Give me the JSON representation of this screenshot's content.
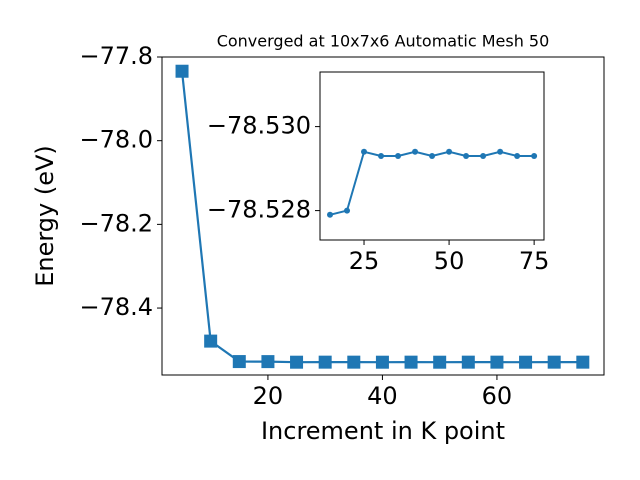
{
  "chart_data": [
    {
      "type": "line",
      "title": "Converged at 10x7x6 Automatic Mesh 50",
      "x_label": "Increment in K point",
      "y_label": "Energy (eV)",
      "x": [
        5,
        10,
        15,
        20,
        25,
        30,
        35,
        40,
        45,
        50,
        55,
        60,
        65,
        70,
        75
      ],
      "values": [
        -77.834,
        -78.479,
        -78.5279,
        -78.528,
        -78.5294,
        -78.5293,
        -78.5293,
        -78.5294,
        -78.5293,
        -78.5294,
        -78.5293,
        -78.5293,
        -78.5294,
        -78.5293,
        -78.5293
      ],
      "color": "#1f77b4",
      "marker": "square",
      "xlim": [
        1.5,
        78.7
      ],
      "ylim": [
        -78.56,
        -77.8
      ],
      "xticks": [
        20,
        40,
        60
      ],
      "yticks": [
        {
          "value": -77.8,
          "label": "−77.8"
        },
        {
          "value": -78.0,
          "label": "−78.0"
        },
        {
          "value": -78.2,
          "label": "−78.2"
        },
        {
          "value": -78.4,
          "label": "−78.4"
        }
      ]
    },
    {
      "type": "line",
      "x": [
        15,
        20,
        25,
        30,
        35,
        40,
        45,
        50,
        55,
        60,
        65,
        70,
        75
      ],
      "values": [
        -78.5279,
        -78.528,
        -78.5294,
        -78.5293,
        -78.5293,
        -78.5294,
        -78.5293,
        -78.5294,
        -78.5293,
        -78.5293,
        -78.5294,
        -78.5293,
        -78.5293
      ],
      "color": "#1f77b4",
      "marker": "circle",
      "xlim": [
        12.06,
        77.9
      ],
      "ylim": [
        -78.5273,
        -78.5313
      ],
      "xticks": [
        25,
        50,
        75
      ],
      "yticks": [
        {
          "value": -78.53,
          "label": "−78.530"
        },
        {
          "value": -78.528,
          "label": "−78.528"
        }
      ]
    }
  ]
}
